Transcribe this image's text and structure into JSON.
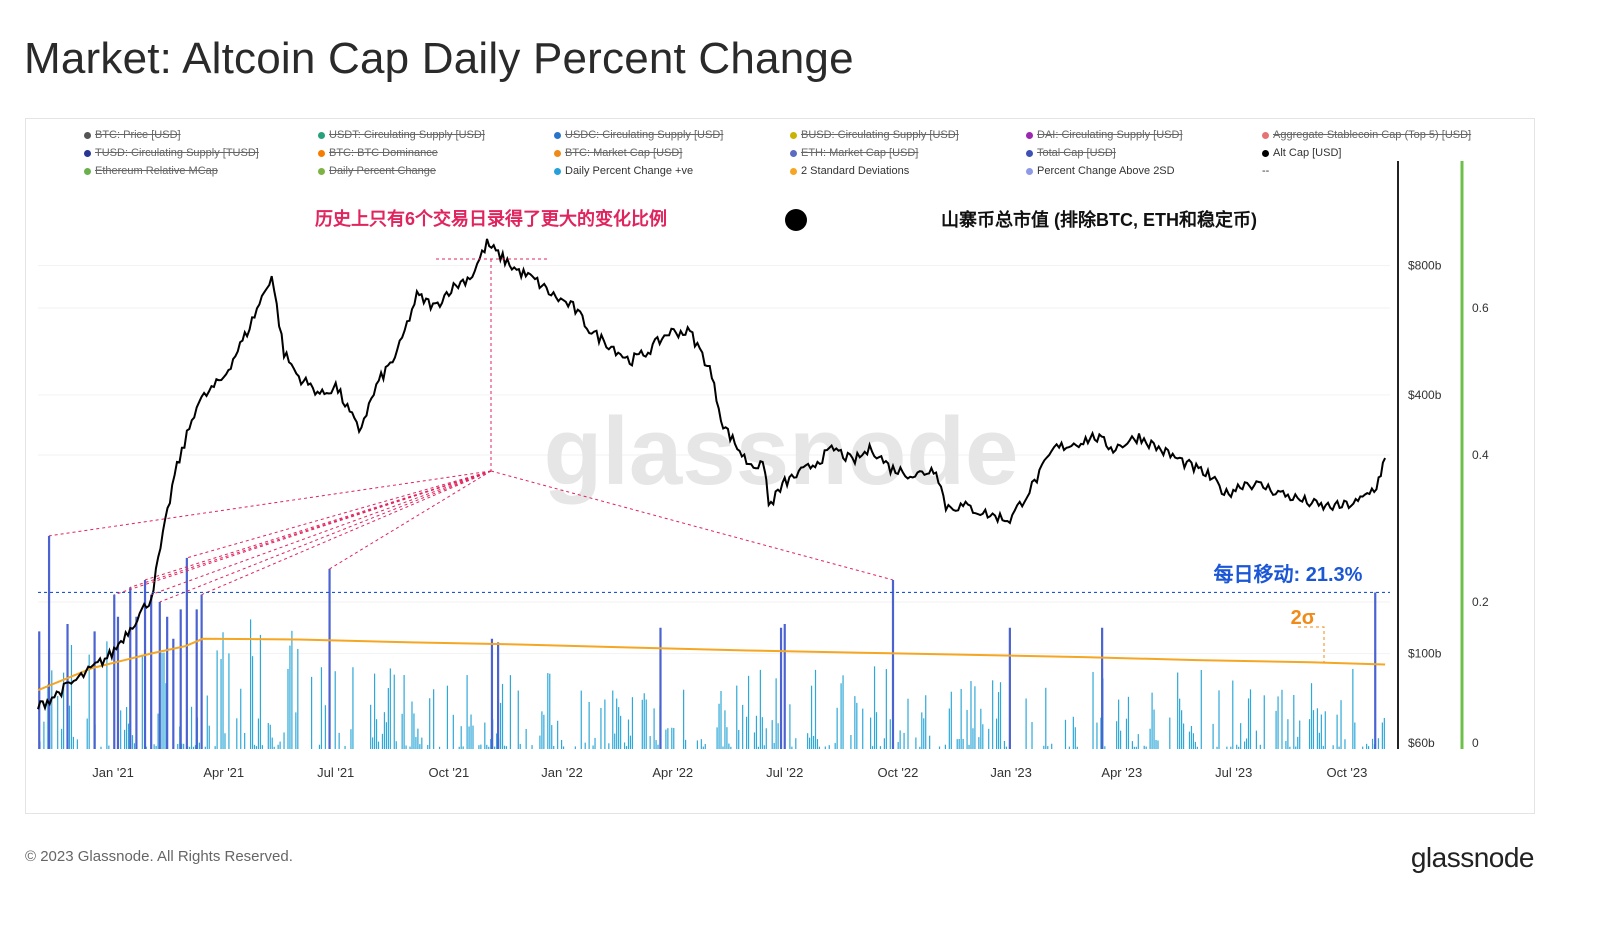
{
  "page": {
    "title": "Market: Altcoin Cap Daily Percent Change",
    "copyright": "© 2023 Glassnode. All Rights Reserved.",
    "logo_text": "glassnode"
  },
  "legend": [
    {
      "label": "BTC: Price [USD]",
      "color": "#555555",
      "active": false
    },
    {
      "label": "USDT: Circulating Supply [USD]",
      "color": "#26a17b",
      "active": false
    },
    {
      "label": "USDC: Circulating Supply [USD]",
      "color": "#2775ca",
      "active": false
    },
    {
      "label": "BUSD: Circulating Supply [USD]",
      "color": "#c9b400",
      "active": false
    },
    {
      "label": "DAI: Circulating Supply [USD]",
      "color": "#9c27b0",
      "active": false
    },
    {
      "label": "Aggregate Stablecoin Cap (Top 5) [USD]",
      "color": "#e57373",
      "active": false
    },
    {
      "label": "TUSD: Circulating Supply [TUSD]",
      "color": "#283593",
      "active": false
    },
    {
      "label": "BTC: BTC Dominance",
      "color": "#f57c00",
      "active": false
    },
    {
      "label": "BTC: Market Cap [USD]",
      "color": "#ef8a1a",
      "active": false
    },
    {
      "label": "ETH: Market Cap [USD]",
      "color": "#5c6bc0",
      "active": false
    },
    {
      "label": "Total Cap [USD]",
      "color": "#3f51b5",
      "active": false
    },
    {
      "label": "Alt Cap [USD]",
      "color": "#000000",
      "active": true
    },
    {
      "label": "Ethereum Relative MCap",
      "color": "#6ab04c",
      "active": false
    },
    {
      "label": "Daily Percent Change",
      "color": "#7cb342",
      "active": false
    },
    {
      "label": "Daily Percent Change +ve",
      "color": "#26a0d9",
      "active": true
    },
    {
      "label": "2 Standard Deviations",
      "color": "#f5a623",
      "active": true
    },
    {
      "label": "Percent Change Above 2SD",
      "color": "#8e9ae6",
      "active": true
    },
    {
      "label": "--",
      "color": "",
      "active": true
    }
  ],
  "annotations": {
    "history_note": "历史上只有6个交易日录得了更大的变化比例",
    "series_note": "山寨币总市值 (排除BTC, ETH和稳定币)",
    "daily_move": "每日移动: 21.3%",
    "sigma_label": "2σ",
    "watermark": "glassnode"
  },
  "colors": {
    "alt_cap": "#000000",
    "daily_pos": "#2fa8d8",
    "above_2sd": "#4a63d0",
    "two_sd": "#f5a623",
    "annotation_pink": "#e0245e",
    "annotation_blue": "#1a56d6",
    "annotation_orange": "#f08a18",
    "right_axis2": "#6cc04a"
  },
  "chart_data": {
    "type": "line",
    "x_ticks": [
      "Jan '21",
      "Apr '21",
      "Jul '21",
      "Oct '21",
      "Jan '22",
      "Apr '22",
      "Jul '22",
      "Oct '22",
      "Jan '23",
      "Apr '23",
      "Jul '23",
      "Oct '23"
    ],
    "x_range": [
      "2020-11-01",
      "2023-11-05"
    ],
    "y_left": {
      "label": "",
      "scale": "log",
      "ticks": [
        "$60b",
        "$100b",
        "$400b",
        "$800b"
      ],
      "tick_values": [
        60,
        100,
        400,
        800
      ],
      "range": [
        60,
        1400
      ],
      "unit": "USD billions"
    },
    "y_right": {
      "label": "",
      "ticks": [
        "0",
        "0.2",
        "0.4",
        "0.6"
      ],
      "tick_values": [
        0,
        0.2,
        0.4,
        0.6
      ],
      "range": [
        0,
        0.8
      ]
    },
    "series": [
      {
        "name": "Alt Cap [USD]",
        "axis": "left",
        "dates": [
          "2020-11-01",
          "2020-11-20",
          "2020-12-10",
          "2020-12-31",
          "2021-01-15",
          "2021-02-01",
          "2021-02-20",
          "2021-03-10",
          "2021-04-01",
          "2021-04-20",
          "2021-05-10",
          "2021-05-20",
          "2021-06-01",
          "2021-06-20",
          "2021-07-01",
          "2021-07-20",
          "2021-08-05",
          "2021-08-20",
          "2021-09-05",
          "2021-09-20",
          "2021-10-01",
          "2021-10-20",
          "2021-11-01",
          "2021-11-10",
          "2021-11-25",
          "2021-12-10",
          "2021-12-25",
          "2022-01-10",
          "2022-01-25",
          "2022-02-10",
          "2022-02-25",
          "2022-03-10",
          "2022-03-29",
          "2022-04-15",
          "2022-05-01",
          "2022-05-12",
          "2022-05-31",
          "2022-06-15",
          "2022-06-18",
          "2022-07-01",
          "2022-07-20",
          "2022-08-10",
          "2022-08-25",
          "2022-09-10",
          "2022-09-25",
          "2022-10-15",
          "2022-11-01",
          "2022-11-09",
          "2022-11-25",
          "2022-12-15",
          "2022-12-31",
          "2023-01-20",
          "2023-02-05",
          "2023-02-25",
          "2023-03-10",
          "2023-03-25",
          "2023-04-15",
          "2023-05-01",
          "2023-05-20",
          "2023-06-10",
          "2023-06-25",
          "2023-07-10",
          "2023-07-25",
          "2023-08-10",
          "2023-08-20",
          "2023-09-10",
          "2023-09-25",
          "2023-10-10",
          "2023-10-25",
          "2023-11-01"
        ],
        "values": [
          75,
          82,
          90,
          100,
          115,
          135,
          260,
          380,
          440,
          560,
          760,
          500,
          440,
          400,
          420,
          330,
          430,
          500,
          680,
          640,
          700,
          760,
          900,
          850,
          780,
          740,
          680,
          640,
          560,
          520,
          480,
          500,
          560,
          560,
          460,
          340,
          280,
          270,
          220,
          250,
          270,
          300,
          280,
          300,
          270,
          260,
          270,
          220,
          220,
          210,
          205,
          250,
          300,
          310,
          320,
          300,
          320,
          300,
          280,
          260,
          235,
          250,
          245,
          235,
          230,
          220,
          220,
          225,
          245,
          285
        ]
      },
      {
        "name": "2 Standard Deviations",
        "axis": "right",
        "dates": [
          "2020-11-01",
          "2020-12-15",
          "2021-02-01",
          "2021-03-01",
          "2021-03-15",
          "2021-06-01",
          "2021-09-01",
          "2021-12-01",
          "2022-03-01",
          "2022-06-01",
          "2022-09-01",
          "2022-12-01",
          "2023-03-01",
          "2023-06-01",
          "2023-09-01",
          "2023-11-01"
        ],
        "values": [
          0.08,
          0.11,
          0.13,
          0.14,
          0.15,
          0.149,
          0.145,
          0.142,
          0.138,
          0.134,
          0.131,
          0.128,
          0.125,
          0.121,
          0.118,
          0.115
        ]
      }
    ],
    "bars": {
      "name": "Daily Percent Change +ve",
      "axis": "right",
      "note": "daily positive percent changes; bars exceeding 2σ are highlighted",
      "highlight_name": "Percent Change Above 2SD",
      "highlight_dates": [
        "2020-11-02",
        "2020-11-10",
        "2020-11-25",
        "2020-12-17",
        "2021-01-02",
        "2021-01-05",
        "2021-01-15",
        "2021-01-20",
        "2021-01-27",
        "2021-02-01",
        "2021-02-08",
        "2021-02-14",
        "2021-02-19",
        "2021-02-25",
        "2021-03-02",
        "2021-03-10",
        "2021-03-14",
        "2021-06-26",
        "2021-11-05",
        "2021-11-10",
        "2022-03-22",
        "2022-06-28",
        "2022-07-01",
        "2022-09-27",
        "2022-12-31",
        "2023-03-16",
        "2023-10-24"
      ],
      "highlight_values": [
        0.16,
        0.29,
        0.17,
        0.16,
        0.21,
        0.18,
        0.22,
        0.18,
        0.23,
        0.21,
        0.2,
        0.18,
        0.15,
        0.19,
        0.26,
        0.19,
        0.21,
        0.245,
        0.15,
        0.145,
        0.165,
        0.165,
        0.17,
        0.23,
        0.165,
        0.165,
        0.213
      ]
    }
  }
}
